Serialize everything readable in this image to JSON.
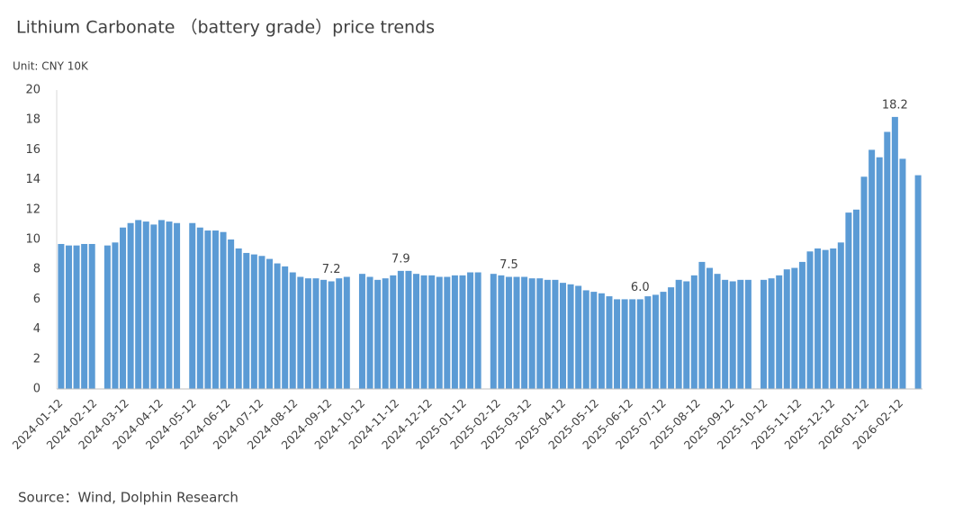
{
  "chart_data": {
    "type": "bar",
    "title": "Lithium Carbonate （battery grade）price trends",
    "subtitle": "Unit: CNY 10K",
    "source": "Source：Wind, Dolphin Research",
    "x": [
      "2024-01-12",
      "2024-01-19",
      "2024-01-26",
      "2024-02-02",
      "2024-02-09",
      "2024-02-23",
      "2024-03-01",
      "2024-03-08",
      "2024-03-15",
      "2024-03-22",
      "2024-03-29",
      "2024-04-05",
      "2024-04-12",
      "2024-04-19",
      "2024-04-26",
      "2024-05-10",
      "2024-05-17",
      "2024-05-24",
      "2024-05-31",
      "2024-06-07",
      "2024-06-14",
      "2024-06-21",
      "2024-06-28",
      "2024-07-05",
      "2024-07-12",
      "2024-07-19",
      "2024-07-26",
      "2024-08-02",
      "2024-08-09",
      "2024-08-16",
      "2024-08-23",
      "2024-08-30",
      "2024-09-06",
      "2024-09-13",
      "2024-09-20",
      "2024-09-27",
      "2024-10-11",
      "2024-10-18",
      "2024-10-25",
      "2024-11-01",
      "2024-11-08",
      "2024-11-15",
      "2024-11-22",
      "2024-11-29",
      "2024-12-06",
      "2024-12-13",
      "2024-12-20",
      "2024-12-27",
      "2025-01-03",
      "2025-01-10",
      "2025-01-17",
      "2025-01-24",
      "2025-02-07",
      "2025-02-14",
      "2025-02-21",
      "2025-02-28",
      "2025-03-07",
      "2025-03-14",
      "2025-03-21",
      "2025-03-28",
      "2025-04-04",
      "2025-04-11",
      "2025-04-18",
      "2025-04-25",
      "2025-05-02",
      "2025-05-09",
      "2025-05-16",
      "2025-05-23",
      "2025-05-30",
      "2025-06-06",
      "2025-06-13",
      "2025-06-20",
      "2025-06-27",
      "2025-07-04",
      "2025-07-11",
      "2025-07-18",
      "2025-07-25",
      "2025-08-01",
      "2025-08-08",
      "2025-08-15",
      "2025-08-22",
      "2025-08-29",
      "2025-09-05",
      "2025-09-12",
      "2025-09-19",
      "2025-09-26",
      "2025-10-10",
      "2025-10-17",
      "2025-10-24",
      "2025-10-31",
      "2025-11-07",
      "2025-11-14",
      "2025-11-21",
      "2025-11-28",
      "2025-12-05",
      "2025-12-12",
      "2025-12-19",
      "2025-12-26",
      "2026-01-02",
      "2026-01-09",
      "2026-01-16",
      "2026-01-23",
      "2026-01-30",
      "2026-02-06",
      "2026-02-13",
      "2026-02-27"
    ],
    "values": [
      9.7,
      9.6,
      9.6,
      9.7,
      9.7,
      9.6,
      9.8,
      10.8,
      11.1,
      11.3,
      11.2,
      11.0,
      11.3,
      11.2,
      11.1,
      11.1,
      10.8,
      10.6,
      10.6,
      10.5,
      10.0,
      9.4,
      9.1,
      9.0,
      8.9,
      8.7,
      8.4,
      8.2,
      7.8,
      7.5,
      7.4,
      7.4,
      7.3,
      7.2,
      7.4,
      7.5,
      7.7,
      7.5,
      7.3,
      7.4,
      7.6,
      7.9,
      7.9,
      7.7,
      7.6,
      7.6,
      7.5,
      7.5,
      7.6,
      7.6,
      7.8,
      7.8,
      7.7,
      7.6,
      7.5,
      7.5,
      7.5,
      7.4,
      7.4,
      7.3,
      7.3,
      7.1,
      7.0,
      6.9,
      6.6,
      6.5,
      6.4,
      6.2,
      6.0,
      6.0,
      6.0,
      6.0,
      6.2,
      6.3,
      6.5,
      6.8,
      7.3,
      7.2,
      7.6,
      8.5,
      8.1,
      7.7,
      7.3,
      7.2,
      7.3,
      7.3,
      7.3,
      7.4,
      7.6,
      8.0,
      8.1,
      8.5,
      9.2,
      9.4,
      9.3,
      9.4,
      9.8,
      11.8,
      12.0,
      14.2,
      16.0,
      15.5,
      17.2,
      18.2,
      15.4,
      14.3
    ],
    "value_labels": [
      null,
      null,
      null,
      null,
      null,
      null,
      null,
      null,
      null,
      null,
      null,
      null,
      null,
      null,
      null,
      null,
      null,
      null,
      null,
      null,
      null,
      null,
      null,
      null,
      null,
      null,
      null,
      null,
      null,
      null,
      null,
      null,
      null,
      "7.2",
      null,
      null,
      null,
      null,
      null,
      null,
      null,
      "7.9",
      null,
      null,
      null,
      null,
      null,
      null,
      null,
      null,
      null,
      null,
      null,
      null,
      "7.5",
      null,
      null,
      null,
      null,
      null,
      null,
      null,
      null,
      null,
      null,
      null,
      null,
      null,
      null,
      null,
      null,
      "6.0",
      null,
      null,
      null,
      null,
      null,
      null,
      null,
      null,
      null,
      null,
      null,
      null,
      null,
      null,
      null,
      null,
      null,
      null,
      null,
      null,
      null,
      null,
      null,
      null,
      null,
      null,
      null,
      null,
      null,
      null,
      null,
      "18.2",
      null,
      null
    ],
    "color": "#5b9bd5",
    "xlim": [
      "2024-01-08",
      "2026-03-03"
    ],
    "xticks": [
      "2024-01-12",
      "2024-02-12",
      "2024-03-12",
      "2024-04-12",
      "2024-05-12",
      "2024-06-12",
      "2024-07-12",
      "2024-08-12",
      "2024-09-12",
      "2024-10-12",
      "2024-11-12",
      "2024-12-12",
      "2025-01-12",
      "2025-02-12",
      "2025-03-12",
      "2025-04-12",
      "2025-05-12",
      "2025-06-12",
      "2025-07-12",
      "2025-08-12",
      "2025-09-12",
      "2025-10-12",
      "2025-11-12",
      "2025-12-12",
      "2026-01-12",
      "2026-02-12"
    ],
    "ylim": [
      0,
      20
    ],
    "yticks": [
      0,
      2,
      4,
      6,
      8,
      10,
      12,
      14,
      16,
      18,
      20
    ],
    "grid": false
  }
}
